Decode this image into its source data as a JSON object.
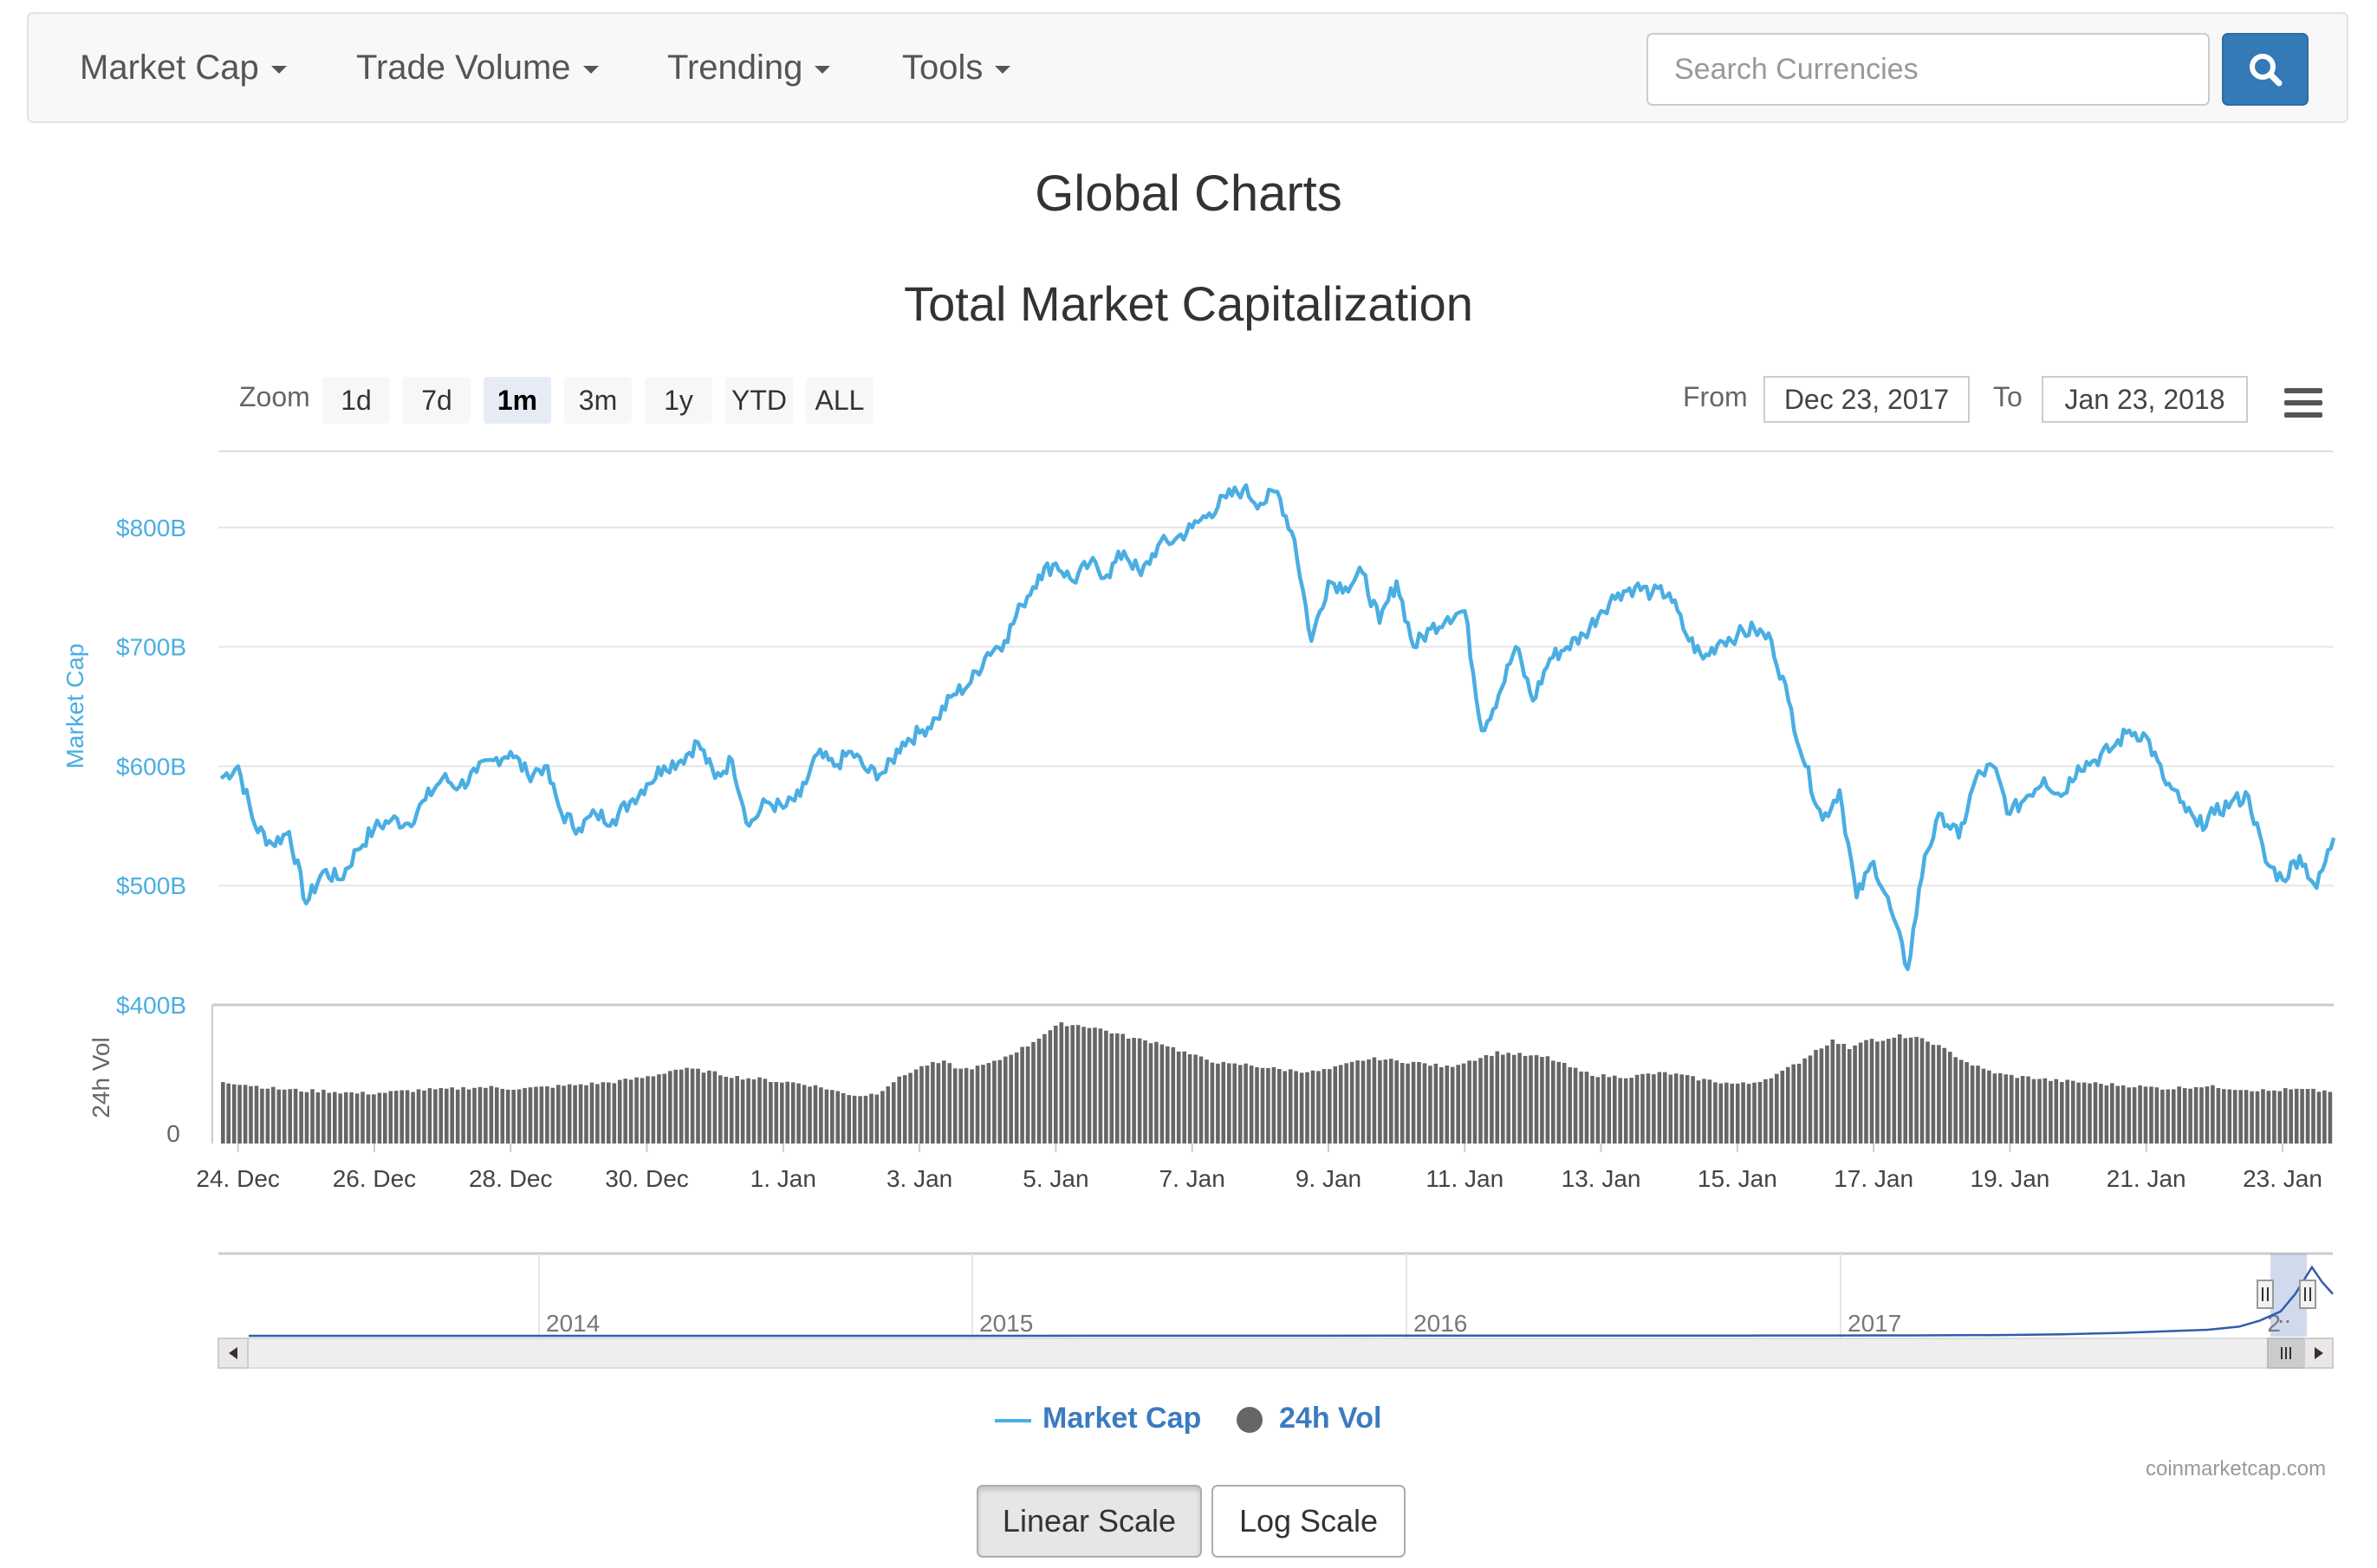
{
  "navbar": {
    "items": [
      {
        "label": "Market Cap"
      },
      {
        "label": "Trade Volume"
      },
      {
        "label": "Trending"
      },
      {
        "label": "Tools"
      }
    ],
    "search": {
      "placeholder": "Search Currencies",
      "value": ""
    }
  },
  "page": {
    "title": "Global Charts"
  },
  "chart_controls": {
    "zoom_label": "Zoom",
    "zoom_buttons": [
      "1d",
      "7d",
      "1m",
      "3m",
      "1y",
      "YTD",
      "ALL"
    ],
    "active_zoom": "1m",
    "from_label": "From",
    "from_date": "Dec 23, 2017",
    "to_label": "To",
    "to_date": "Jan 23, 2018"
  },
  "chart_data": {
    "type": "line",
    "title": "Total Market Capitalization",
    "ylabel": "Market Cap",
    "ylim": [
      400,
      850
    ],
    "y_ticks": [
      "$800B",
      "$700B",
      "$600B",
      "$500B",
      "$400B"
    ],
    "x_range": [
      "2017-12-23T18:00",
      "2018-01-23T18:00"
    ],
    "x_ticks": [
      "24. Dec",
      "26. Dec",
      "28. Dec",
      "30. Dec",
      "1. Jan",
      "3. Jan",
      "5. Jan",
      "7. Jan",
      "9. Jan",
      "11. Jan",
      "13. Jan",
      "15. Jan",
      "17. Jan",
      "19. Jan",
      "21. Jan",
      "23. Jan"
    ],
    "series": [
      {
        "name": "Market Cap",
        "unit": "billion USD",
        "color": "#4aaee3",
        "points": [
          [
            "2017-12-23T18:00",
            590
          ],
          [
            "2017-12-24T00:00",
            600
          ],
          [
            "2017-12-24T06:00",
            550
          ],
          [
            "2017-12-24T12:00",
            535
          ],
          [
            "2017-12-24T18:00",
            545
          ],
          [
            "2017-12-25T00:00",
            485
          ],
          [
            "2017-12-25T06:00",
            512
          ],
          [
            "2017-12-25T12:00",
            505
          ],
          [
            "2017-12-25T18:00",
            530
          ],
          [
            "2017-12-26T00:00",
            548
          ],
          [
            "2017-12-26T06:00",
            555
          ],
          [
            "2017-12-26T12:00",
            552
          ],
          [
            "2017-12-26T18:00",
            572
          ],
          [
            "2017-12-27T00:00",
            590
          ],
          [
            "2017-12-27T06:00",
            583
          ],
          [
            "2017-12-27T12:00",
            595
          ],
          [
            "2017-12-27T18:00",
            605
          ],
          [
            "2017-12-28T00:00",
            612
          ],
          [
            "2017-12-28T06:00",
            593
          ],
          [
            "2017-12-28T12:00",
            600
          ],
          [
            "2017-12-28T18:00",
            560
          ],
          [
            "2017-12-29T00:00",
            548
          ],
          [
            "2017-12-29T06:00",
            560
          ],
          [
            "2017-12-29T12:00",
            555
          ],
          [
            "2017-12-29T18:00",
            570
          ],
          [
            "2017-12-30T00:00",
            585
          ],
          [
            "2017-12-30T06:00",
            600
          ],
          [
            "2017-12-30T12:00",
            605
          ],
          [
            "2017-12-30T18:00",
            620
          ],
          [
            "2017-12-31T00:00",
            590
          ],
          [
            "2017-12-31T06:00",
            605
          ],
          [
            "2017-12-31T12:00",
            550
          ],
          [
            "2017-12-31T18:00",
            570
          ],
          [
            "2018-01-01T00:00",
            565
          ],
          [
            "2018-01-01T06:00",
            575
          ],
          [
            "2018-01-01T12:00",
            610
          ],
          [
            "2018-01-01T18:00",
            600
          ],
          [
            "2018-01-02T00:00",
            612
          ],
          [
            "2018-01-02T06:00",
            595
          ],
          [
            "2018-01-02T12:00",
            595
          ],
          [
            "2018-01-02T18:00",
            620
          ],
          [
            "2018-01-03T00:00",
            628
          ],
          [
            "2018-01-03T06:00",
            640
          ],
          [
            "2018-01-03T12:00",
            660
          ],
          [
            "2018-01-03T18:00",
            670
          ],
          [
            "2018-01-04T00:00",
            695
          ],
          [
            "2018-01-04T06:00",
            705
          ],
          [
            "2018-01-04T12:00",
            735
          ],
          [
            "2018-01-04T18:00",
            760
          ],
          [
            "2018-01-05T00:00",
            770
          ],
          [
            "2018-01-05T06:00",
            755
          ],
          [
            "2018-01-05T12:00",
            770
          ],
          [
            "2018-01-05T18:00",
            760
          ],
          [
            "2018-01-06T00:00",
            780
          ],
          [
            "2018-01-06T06:00",
            760
          ],
          [
            "2018-01-06T12:00",
            785
          ],
          [
            "2018-01-06T18:00",
            790
          ],
          [
            "2018-01-07T00:00",
            800
          ],
          [
            "2018-01-07T06:00",
            812
          ],
          [
            "2018-01-07T12:00",
            825
          ],
          [
            "2018-01-07T18:00",
            832
          ],
          [
            "2018-01-08T00:00",
            820
          ],
          [
            "2018-01-08T06:00",
            830
          ],
          [
            "2018-01-08T12:00",
            790
          ],
          [
            "2018-01-08T18:00",
            705
          ],
          [
            "2018-01-09T00:00",
            755
          ],
          [
            "2018-01-09T06:00",
            750
          ],
          [
            "2018-01-09T12:00",
            762
          ],
          [
            "2018-01-09T18:00",
            720
          ],
          [
            "2018-01-10T00:00",
            755
          ],
          [
            "2018-01-10T06:00",
            700
          ],
          [
            "2018-01-10T12:00",
            715
          ],
          [
            "2018-01-10T18:00",
            725
          ],
          [
            "2018-01-11T00:00",
            730
          ],
          [
            "2018-01-11T06:00",
            630
          ],
          [
            "2018-01-11T12:00",
            660
          ],
          [
            "2018-01-11T18:00",
            700
          ],
          [
            "2018-01-12T00:00",
            655
          ],
          [
            "2018-01-12T06:00",
            690
          ],
          [
            "2018-01-12T12:00",
            700
          ],
          [
            "2018-01-12T18:00",
            710
          ],
          [
            "2018-01-13T00:00",
            730
          ],
          [
            "2018-01-13T06:00",
            745
          ],
          [
            "2018-01-13T12:00",
            750
          ],
          [
            "2018-01-13T18:00",
            745
          ],
          [
            "2018-01-14T00:00",
            745
          ],
          [
            "2018-01-14T06:00",
            710
          ],
          [
            "2018-01-14T12:00",
            690
          ],
          [
            "2018-01-14T18:00",
            705
          ],
          [
            "2018-01-15T00:00",
            710
          ],
          [
            "2018-01-15T06:00",
            715
          ],
          [
            "2018-01-15T12:00",
            705
          ],
          [
            "2018-01-15T18:00",
            655
          ],
          [
            "2018-01-16T00:00",
            600
          ],
          [
            "2018-01-16T06:00",
            555
          ],
          [
            "2018-01-16T12:00",
            580
          ],
          [
            "2018-01-16T18:00",
            490
          ],
          [
            "2018-01-17T00:00",
            520
          ],
          [
            "2018-01-17T06:00",
            480
          ],
          [
            "2018-01-17T12:00",
            430
          ],
          [
            "2018-01-17T18:00",
            525
          ],
          [
            "2018-01-18T00:00",
            560
          ],
          [
            "2018-01-18T06:00",
            540
          ],
          [
            "2018-01-18T12:00",
            590
          ],
          [
            "2018-01-18T18:00",
            600
          ],
          [
            "2018-01-19T00:00",
            560
          ],
          [
            "2018-01-19T06:00",
            575
          ],
          [
            "2018-01-19T12:00",
            590
          ],
          [
            "2018-01-19T18:00",
            575
          ],
          [
            "2018-01-20T00:00",
            600
          ],
          [
            "2018-01-20T06:00",
            605
          ],
          [
            "2018-01-20T12:00",
            615
          ],
          [
            "2018-01-20T18:00",
            630
          ],
          [
            "2018-01-21T00:00",
            625
          ],
          [
            "2018-01-21T06:00",
            590
          ],
          [
            "2018-01-21T12:00",
            570
          ],
          [
            "2018-01-21T18:00",
            550
          ],
          [
            "2018-01-22T00:00",
            560
          ],
          [
            "2018-01-22T06:00",
            570
          ],
          [
            "2018-01-22T12:00",
            575
          ],
          [
            "2018-01-22T18:00",
            520
          ],
          [
            "2018-01-23T00:00",
            505
          ],
          [
            "2018-01-23T06:00",
            525
          ],
          [
            "2018-01-23T12:00",
            498
          ],
          [
            "2018-01-23T18:00",
            540
          ]
        ]
      },
      {
        "name": "24h Vol",
        "color": "#666666",
        "relative_values": [
          0.52,
          0.5,
          0.48,
          0.46,
          0.45,
          0.44,
          0.44,
          0.43,
          0.42,
          0.42,
          0.43,
          0.44,
          0.45,
          0.45,
          0.46,
          0.47,
          0.47,
          0.46,
          0.46,
          0.47,
          0.48,
          0.49,
          0.5,
          0.51,
          0.53,
          0.55,
          0.58,
          0.62,
          0.62,
          0.6,
          0.57,
          0.55,
          0.54,
          0.52,
          0.51,
          0.49,
          0.46,
          0.42,
          0.4,
          0.42,
          0.52,
          0.6,
          0.66,
          0.68,
          0.62,
          0.64,
          0.68,
          0.75,
          0.82,
          0.92,
          1.0,
          0.99,
          0.97,
          0.93,
          0.89,
          0.86,
          0.84,
          0.78,
          0.73,
          0.69,
          0.66,
          0.66,
          0.64,
          0.62,
          0.61,
          0.6,
          0.62,
          0.66,
          0.7,
          0.71,
          0.69,
          0.68,
          0.66,
          0.64,
          0.68,
          0.72,
          0.76,
          0.75,
          0.73,
          0.72,
          0.66,
          0.6,
          0.57,
          0.56,
          0.56,
          0.58,
          0.59,
          0.57,
          0.54,
          0.52,
          0.5,
          0.5,
          0.54,
          0.6,
          0.68,
          0.78,
          0.86,
          0.8,
          0.88,
          0.85,
          0.9,
          0.88,
          0.84,
          0.76,
          0.68,
          0.62,
          0.58,
          0.56,
          0.55,
          0.53,
          0.52,
          0.51,
          0.5,
          0.49,
          0.48,
          0.47,
          0.46,
          0.47,
          0.48,
          0.47,
          0.46,
          0.45,
          0.44,
          0.45,
          0.45,
          0.44
        ]
      }
    ],
    "navigator": {
      "years": [
        "2014",
        "2015",
        "2016",
        "2017",
        "2"
      ],
      "overflow_marker": "..",
      "relative_values": [
        0.0,
        0.0,
        0.0,
        0.001,
        0.002,
        0.002,
        0.002,
        0.003,
        0.004,
        0.006,
        0.01,
        0.02,
        0.04,
        0.06,
        0.08,
        0.12,
        0.2,
        0.32,
        0.55,
        0.9,
        0.7,
        0.55
      ]
    }
  },
  "legend": {
    "market_cap": "Market Cap",
    "volume": "24h Vol"
  },
  "credits": "coinmarketcap.com",
  "scale_buttons": {
    "linear": "Linear Scale",
    "log": "Log Scale",
    "active": "linear"
  },
  "colors": {
    "accent": "#337ab7",
    "line": "#4aaee3",
    "volume": "#666666",
    "navigator": "#335cad"
  }
}
